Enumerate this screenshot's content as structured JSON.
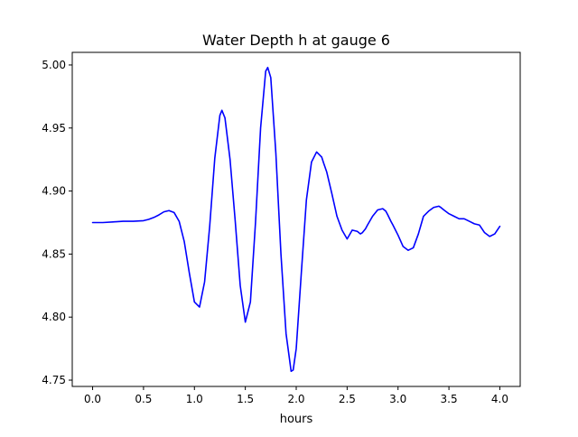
{
  "chart_data": {
    "type": "line",
    "title": "Water Depth h at gauge 6",
    "xlabel": "hours",
    "ylabel": "",
    "xlim": [
      -0.2,
      4.2
    ],
    "ylim": [
      4.745,
      5.01
    ],
    "x_ticks": [
      0.0,
      0.5,
      1.0,
      1.5,
      2.0,
      2.5,
      3.0,
      3.5,
      4.0
    ],
    "x_tick_labels": [
      "0.0",
      "0.5",
      "1.0",
      "1.5",
      "2.0",
      "2.5",
      "3.0",
      "3.5",
      "4.0"
    ],
    "y_ticks": [
      4.75,
      4.8,
      4.85,
      4.9,
      4.95,
      5.0
    ],
    "y_tick_labels": [
      "4.75",
      "4.80",
      "4.85",
      "4.90",
      "4.95",
      "5.00"
    ],
    "grid": false,
    "legend": false,
    "series": [
      {
        "color": "#0000ff",
        "x": [
          0.0,
          0.1,
          0.2,
          0.3,
          0.4,
          0.5,
          0.55,
          0.6,
          0.65,
          0.7,
          0.75,
          0.8,
          0.85,
          0.9,
          0.95,
          1.0,
          1.05,
          1.1,
          1.15,
          1.2,
          1.25,
          1.27,
          1.3,
          1.35,
          1.4,
          1.45,
          1.5,
          1.55,
          1.6,
          1.65,
          1.7,
          1.72,
          1.75,
          1.8,
          1.85,
          1.9,
          1.95,
          1.97,
          2.0,
          2.05,
          2.1,
          2.15,
          2.2,
          2.25,
          2.27,
          2.3,
          2.35,
          2.4,
          2.45,
          2.5,
          2.55,
          2.6,
          2.63,
          2.65,
          2.68,
          2.7,
          2.75,
          2.8,
          2.85,
          2.88,
          2.9,
          2.93,
          2.95,
          3.0,
          3.05,
          3.1,
          3.15,
          3.2,
          3.25,
          3.3,
          3.35,
          3.4,
          3.42,
          3.45,
          3.5,
          3.55,
          3.6,
          3.65,
          3.7,
          3.75,
          3.8,
          3.85,
          3.9,
          3.95,
          4.0
        ],
        "y": [
          4.875,
          4.875,
          4.8755,
          4.876,
          4.876,
          4.8765,
          4.8775,
          4.879,
          4.881,
          4.8835,
          4.8845,
          4.883,
          4.876,
          4.86,
          4.835,
          4.812,
          4.808,
          4.828,
          4.872,
          4.926,
          4.96,
          4.964,
          4.958,
          4.925,
          4.877,
          4.825,
          4.796,
          4.812,
          4.875,
          4.95,
          4.995,
          4.998,
          4.99,
          4.93,
          4.85,
          4.787,
          4.757,
          4.758,
          4.775,
          4.835,
          4.893,
          4.923,
          4.931,
          4.927,
          4.922,
          4.915,
          4.898,
          4.88,
          4.869,
          4.862,
          4.869,
          4.868,
          4.866,
          4.867,
          4.87,
          4.873,
          4.88,
          4.885,
          4.886,
          4.884,
          4.881,
          4.876,
          4.873,
          4.865,
          4.856,
          4.853,
          4.855,
          4.866,
          4.88,
          4.884,
          4.887,
          4.888,
          4.887,
          4.885,
          4.882,
          4.88,
          4.878,
          4.878,
          4.876,
          4.874,
          4.873,
          4.867,
          4.864,
          4.866,
          4.872
        ]
      }
    ]
  }
}
